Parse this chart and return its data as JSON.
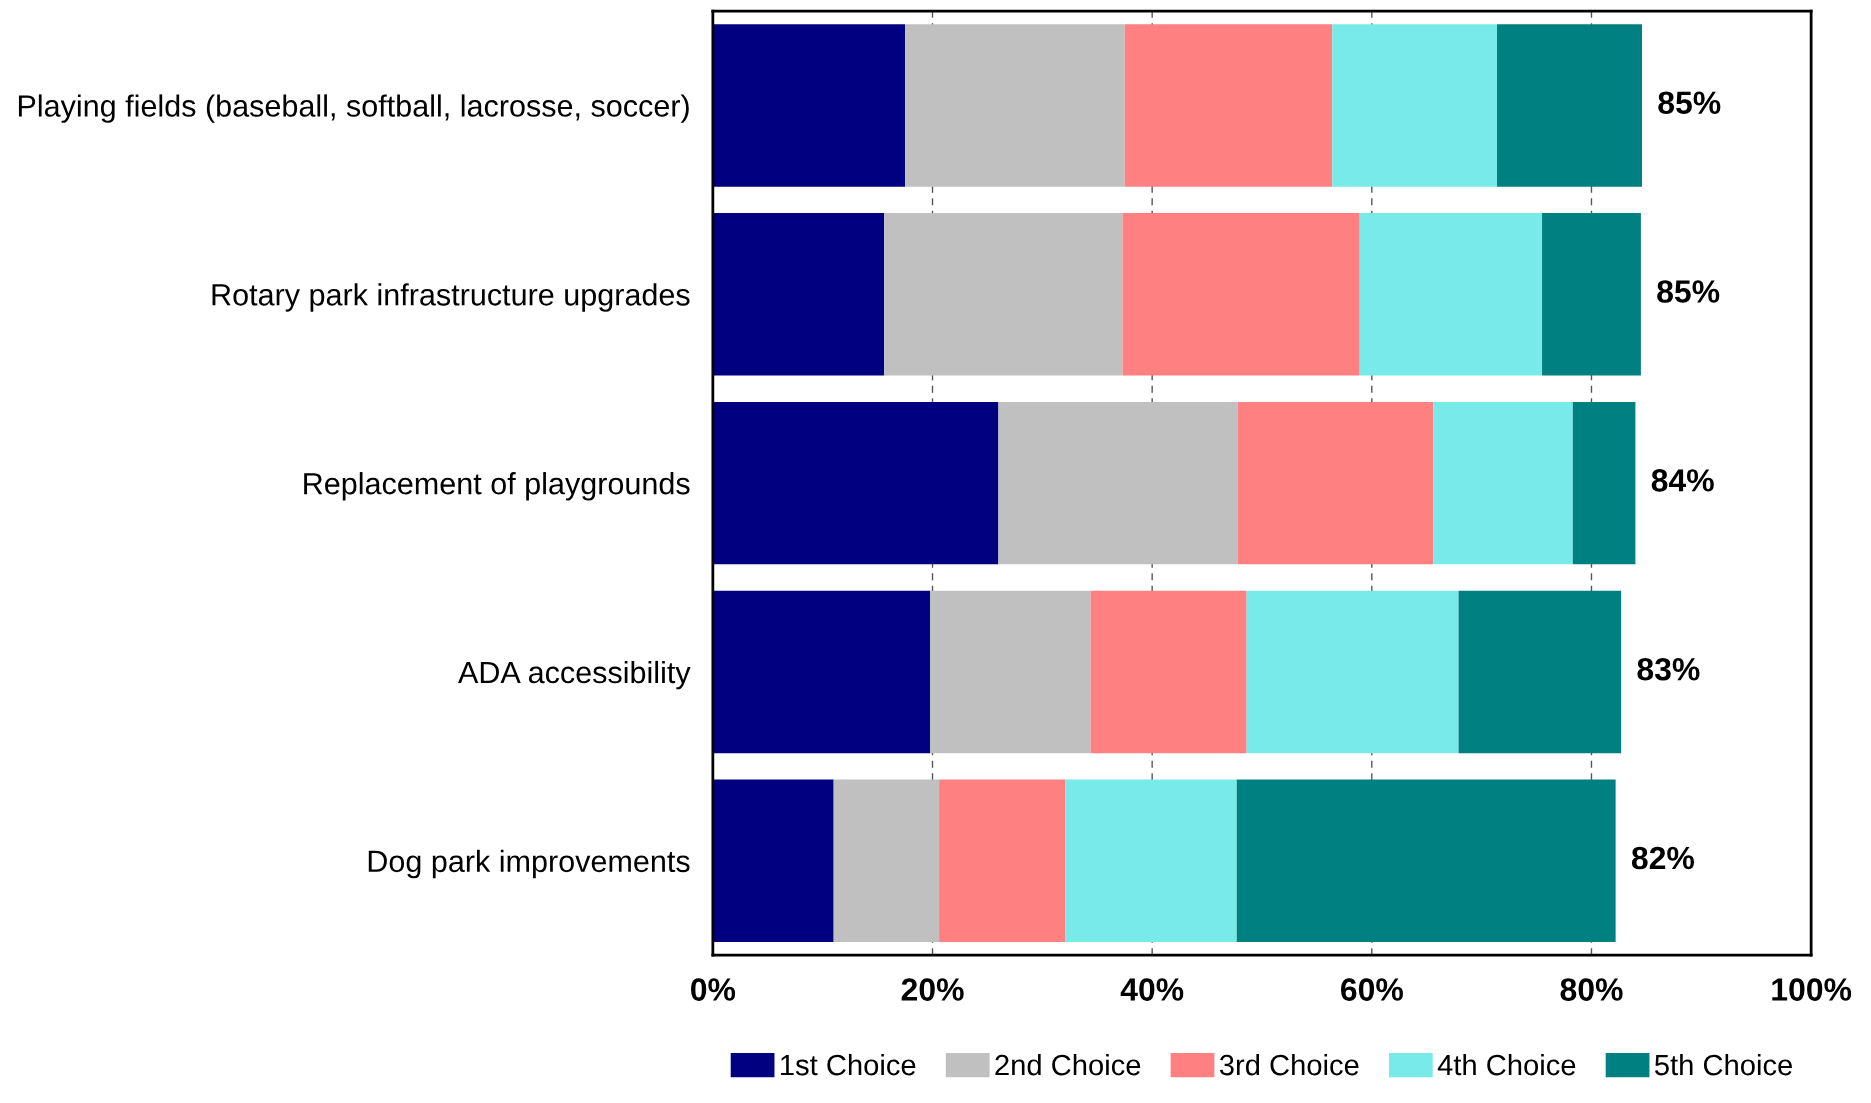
{
  "chart_data": {
    "type": "bar",
    "orientation": "horizontal",
    "stacked": true,
    "categories": [
      "Playing fields (baseball, softball, lacrosse, soccer)",
      "Rotary park infrastructure upgrades",
      "Replacement of playgrounds",
      "ADA accessibility",
      "Dog park improvements"
    ],
    "series": [
      {
        "name": "1st Choice",
        "color": "#000080",
        "values": [
          17.5,
          15.6,
          26.0,
          19.8,
          11.0
        ]
      },
      {
        "name": "2nd Choice",
        "color": "#c0c0c0",
        "values": [
          20.0,
          21.7,
          21.8,
          14.6,
          9.6
        ]
      },
      {
        "name": "3rd Choice",
        "color": "#ff8080",
        "values": [
          18.9,
          21.6,
          17.8,
          14.2,
          11.5
        ]
      },
      {
        "name": "4th Choice",
        "color": "#78eaea",
        "values": [
          15.0,
          16.6,
          12.7,
          19.3,
          15.6
        ]
      },
      {
        "name": "5th Choice",
        "color": "#008080",
        "values": [
          13.2,
          9.0,
          5.7,
          14.8,
          34.5
        ]
      }
    ],
    "xlim": [
      0,
      100
    ],
    "xticks": [
      {
        "value": 0,
        "label": "0%"
      },
      {
        "value": 20,
        "label": "20%"
      },
      {
        "value": 40,
        "label": "40%"
      },
      {
        "value": 60,
        "label": "60%"
      },
      {
        "value": 80,
        "label": "80%"
      },
      {
        "value": 100,
        "label": "100%"
      }
    ],
    "totals": [
      "85%",
      "85%",
      "84%",
      "83%",
      "82%"
    ],
    "grid": "x",
    "legend": "bottom"
  }
}
